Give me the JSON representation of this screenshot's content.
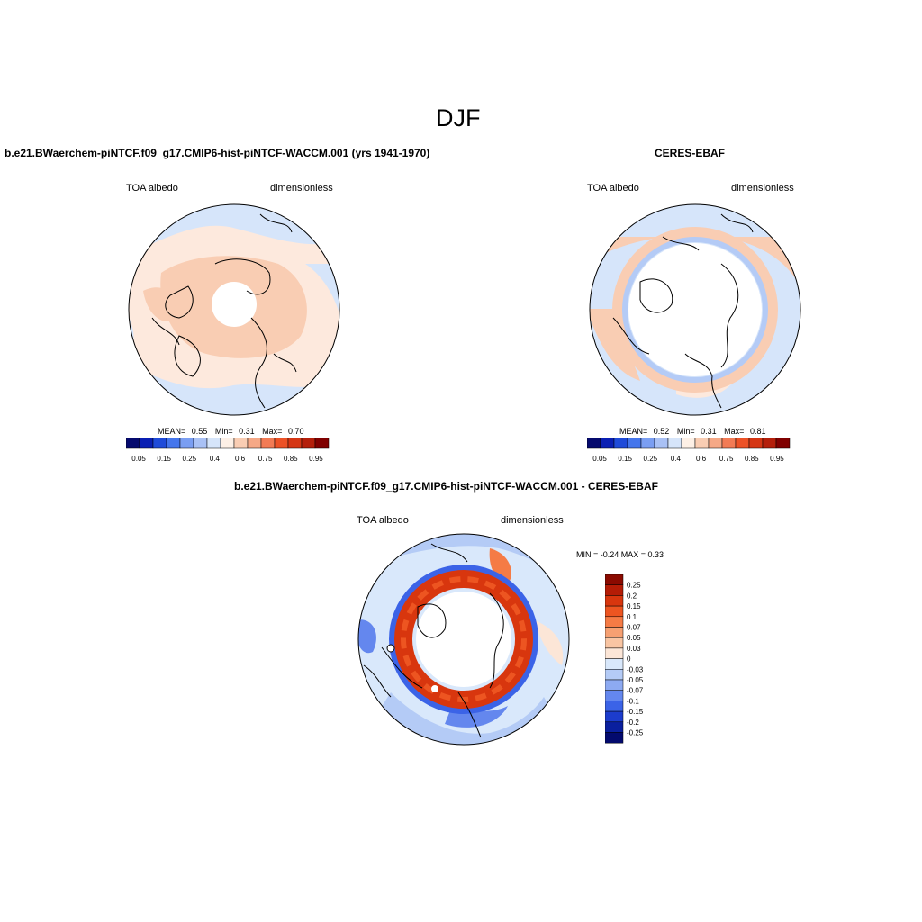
{
  "figure": {
    "season": "DJF"
  },
  "panels": {
    "model": {
      "title": "b.e21.BWaerchem-piNTCF.f09_g17.CMIP6-hist-piNTCF-WACCM.001 (yrs 1941-1970)",
      "variable": "TOA albedo",
      "units": "dimensionless",
      "stats": {
        "mean_label": "MEAN=",
        "mean": "0.55",
        "min_label": "Min=",
        "min": "0.31",
        "max_label": "Max=",
        "max": "0.70"
      }
    },
    "obs": {
      "title": "CERES-EBAF",
      "variable": "TOA albedo",
      "units": "dimensionless",
      "stats": {
        "mean_label": "MEAN=",
        "mean": "0.52",
        "min_label": "Min=",
        "min": "0.31",
        "max_label": "Max=",
        "max": "0.81"
      }
    },
    "diff": {
      "title": "b.e21.BWaerchem-piNTCF.f09_g17.CMIP6-hist-piNTCF-WACCM.001 - CERES-EBAF",
      "variable": "TOA albedo",
      "units": "dimensionless",
      "stats_text": "MIN =  -0.24 MAX =   0.33"
    }
  },
  "colorbar_abs": {
    "labels": [
      "0.05",
      "0.15",
      "0.25",
      "0.4",
      "0.6",
      "0.75",
      "0.85",
      "0.95"
    ],
    "colors": [
      "#050a6e",
      "#0a1fb3",
      "#1f4bd9",
      "#4576ec",
      "#7a9ef2",
      "#a9c1f5",
      "#d6e5fa",
      "#fdf0e6",
      "#f9cdb3",
      "#f5a886",
      "#f27b55",
      "#ec5227",
      "#d53614",
      "#b41f0b",
      "#800000"
    ]
  },
  "colorbar_diff": {
    "labels": [
      "0.25",
      "0.2",
      "0.15",
      "0.1",
      "0.07",
      "0.05",
      "0.03",
      "0",
      "-0.03",
      "-0.05",
      "-0.07",
      "-0.1",
      "-0.15",
      "-0.2",
      "-0.25"
    ],
    "colors": [
      "#8b0a00",
      "#b51c06",
      "#d8360e",
      "#ed5521",
      "#f57b45",
      "#f6a072",
      "#f9c5a3",
      "#fce6d7",
      "#d9e8fb",
      "#b4cbf6",
      "#8daaf2",
      "#6487ee",
      "#3b63e7",
      "#1c3ccd",
      "#0a1f9e",
      "#030a6e"
    ]
  }
}
